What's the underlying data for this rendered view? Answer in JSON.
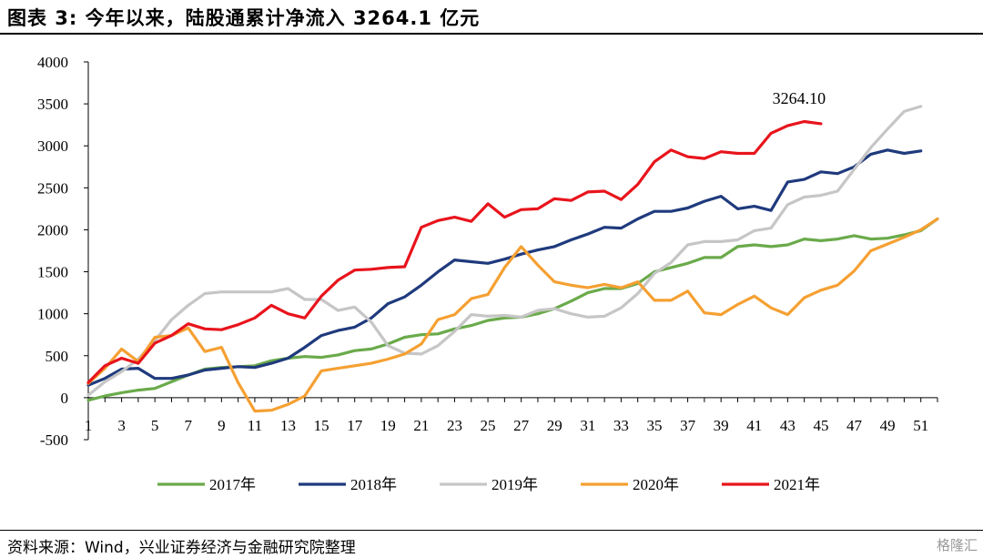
{
  "header": {
    "title": "图表 3:  今年以来，陆股通累计净流入 3264.1 亿元"
  },
  "footer": {
    "source": "资料来源：Wind，兴业证券经济与金融研究院整理",
    "watermark": "格隆汇"
  },
  "chart_data": {
    "type": "line",
    "title": "",
    "xlabel": "",
    "ylabel": "",
    "xlim": [
      1,
      52
    ],
    "ylim": [
      -500,
      4000
    ],
    "x_ticks": [
      1,
      3,
      5,
      7,
      9,
      11,
      13,
      15,
      17,
      19,
      21,
      23,
      25,
      27,
      29,
      31,
      33,
      35,
      37,
      39,
      41,
      43,
      45,
      47,
      49,
      51
    ],
    "y_ticks": [
      -500,
      0,
      500,
      1000,
      1500,
      2000,
      2500,
      3000,
      3500,
      4000
    ],
    "grid": false,
    "legend_position": "bottom",
    "annotation": {
      "text": "3264.10",
      "x": 44,
      "y": 3264.1
    },
    "series": [
      {
        "name": "2017年",
        "color": "#6aaa4b",
        "x": [
          1,
          2,
          3,
          4,
          5,
          6,
          7,
          8,
          9,
          10,
          11,
          12,
          13,
          14,
          15,
          16,
          17,
          18,
          19,
          20,
          21,
          22,
          23,
          24,
          25,
          26,
          27,
          28,
          29,
          30,
          31,
          32,
          33,
          34,
          35,
          36,
          37,
          38,
          39,
          40,
          41,
          42,
          43,
          44,
          45,
          46,
          47,
          48,
          49,
          50,
          51,
          52
        ],
        "values": [
          -30,
          20,
          60,
          90,
          110,
          190,
          270,
          340,
          360,
          370,
          380,
          440,
          470,
          490,
          480,
          510,
          560,
          580,
          640,
          720,
          750,
          760,
          820,
          860,
          920,
          950,
          960,
          1000,
          1060,
          1150,
          1250,
          1300,
          1300,
          1360,
          1500,
          1550,
          1600,
          1670,
          1670,
          1800,
          1820,
          1800,
          1820,
          1890,
          1870,
          1890,
          1930,
          1890,
          1900,
          1940,
          1990,
          2130
        ]
      },
      {
        "name": "2018年",
        "color": "#1f3a7d",
        "x": [
          1,
          2,
          3,
          4,
          5,
          6,
          7,
          8,
          9,
          10,
          11,
          12,
          13,
          14,
          15,
          16,
          17,
          18,
          19,
          20,
          21,
          22,
          23,
          24,
          25,
          26,
          27,
          28,
          29,
          30,
          31,
          32,
          33,
          34,
          35,
          36,
          37,
          38,
          39,
          40,
          41,
          42,
          43,
          44,
          45,
          46,
          47,
          48,
          49,
          50,
          51
        ],
        "values": [
          150,
          230,
          340,
          350,
          230,
          230,
          270,
          330,
          350,
          370,
          360,
          410,
          470,
          600,
          740,
          800,
          840,
          950,
          1120,
          1200,
          1340,
          1500,
          1640,
          1620,
          1600,
          1650,
          1710,
          1760,
          1800,
          1880,
          1950,
          2030,
          2020,
          2130,
          2220,
          2220,
          2260,
          2340,
          2400,
          2250,
          2280,
          2230,
          2570,
          2600,
          2690,
          2670,
          2750,
          2900,
          2950,
          2910,
          2940
        ]
      },
      {
        "name": "2019年",
        "color": "#c6c6c6",
        "x": [
          1,
          2,
          3,
          4,
          5,
          6,
          7,
          8,
          9,
          10,
          11,
          12,
          13,
          14,
          15,
          16,
          17,
          18,
          19,
          20,
          21,
          22,
          23,
          24,
          25,
          26,
          27,
          28,
          29,
          30,
          31,
          32,
          33,
          34,
          35,
          36,
          37,
          38,
          39,
          40,
          41,
          42,
          43,
          44,
          45,
          46,
          47,
          48,
          49,
          50,
          51
        ],
        "values": [
          30,
          190,
          310,
          460,
          680,
          930,
          1100,
          1240,
          1260,
          1260,
          1260,
          1260,
          1300,
          1170,
          1170,
          1040,
          1080,
          900,
          620,
          530,
          520,
          620,
          790,
          990,
          970,
          980,
          960,
          1040,
          1060,
          1000,
          960,
          970,
          1070,
          1240,
          1480,
          1610,
          1820,
          1860,
          1860,
          1880,
          1990,
          2020,
          2300,
          2390,
          2410,
          2460,
          2720,
          2980,
          3200,
          3410,
          3470
        ]
      },
      {
        "name": "2020年",
        "color": "#f5a032",
        "x": [
          1,
          2,
          3,
          4,
          5,
          6,
          7,
          8,
          9,
          10,
          11,
          12,
          13,
          14,
          15,
          16,
          17,
          18,
          19,
          20,
          21,
          22,
          23,
          24,
          25,
          26,
          27,
          28,
          29,
          30,
          31,
          32,
          33,
          34,
          35,
          36,
          37,
          38,
          39,
          40,
          41,
          42,
          43,
          44,
          45,
          46,
          47,
          48,
          49,
          50,
          51,
          52
        ],
        "values": [
          170,
          350,
          580,
          430,
          720,
          740,
          830,
          550,
          600,
          180,
          -160,
          -150,
          -80,
          20,
          320,
          350,
          380,
          410,
          460,
          520,
          640,
          930,
          990,
          1180,
          1230,
          1550,
          1800,
          1580,
          1380,
          1340,
          1310,
          1350,
          1310,
          1380,
          1160,
          1160,
          1270,
          1010,
          990,
          1110,
          1210,
          1070,
          990,
          1190,
          1280,
          1340,
          1510,
          1750,
          1830,
          1910,
          2000,
          2130
        ]
      },
      {
        "name": "2021年",
        "color": "#e8141c",
        "x": [
          1,
          2,
          3,
          4,
          5,
          6,
          7,
          8,
          9,
          10,
          11,
          12,
          13,
          14,
          15,
          16,
          17,
          18,
          19,
          20,
          21,
          22,
          23,
          24,
          25,
          26,
          27,
          28,
          29,
          30,
          31,
          32,
          33,
          34,
          35,
          36,
          37,
          38,
          39,
          40,
          41,
          42,
          43,
          44,
          45
        ],
        "values": [
          180,
          380,
          470,
          410,
          650,
          740,
          880,
          820,
          810,
          870,
          950,
          1100,
          1000,
          950,
          1210,
          1400,
          1520,
          1530,
          1550,
          1560,
          2030,
          2110,
          2150,
          2100,
          2310,
          2150,
          2240,
          2250,
          2370,
          2350,
          2450,
          2460,
          2360,
          2540,
          2810,
          2950,
          2870,
          2850,
          2930,
          2910,
          2910,
          3150,
          3240,
          3290,
          3264.1
        ]
      }
    ]
  }
}
